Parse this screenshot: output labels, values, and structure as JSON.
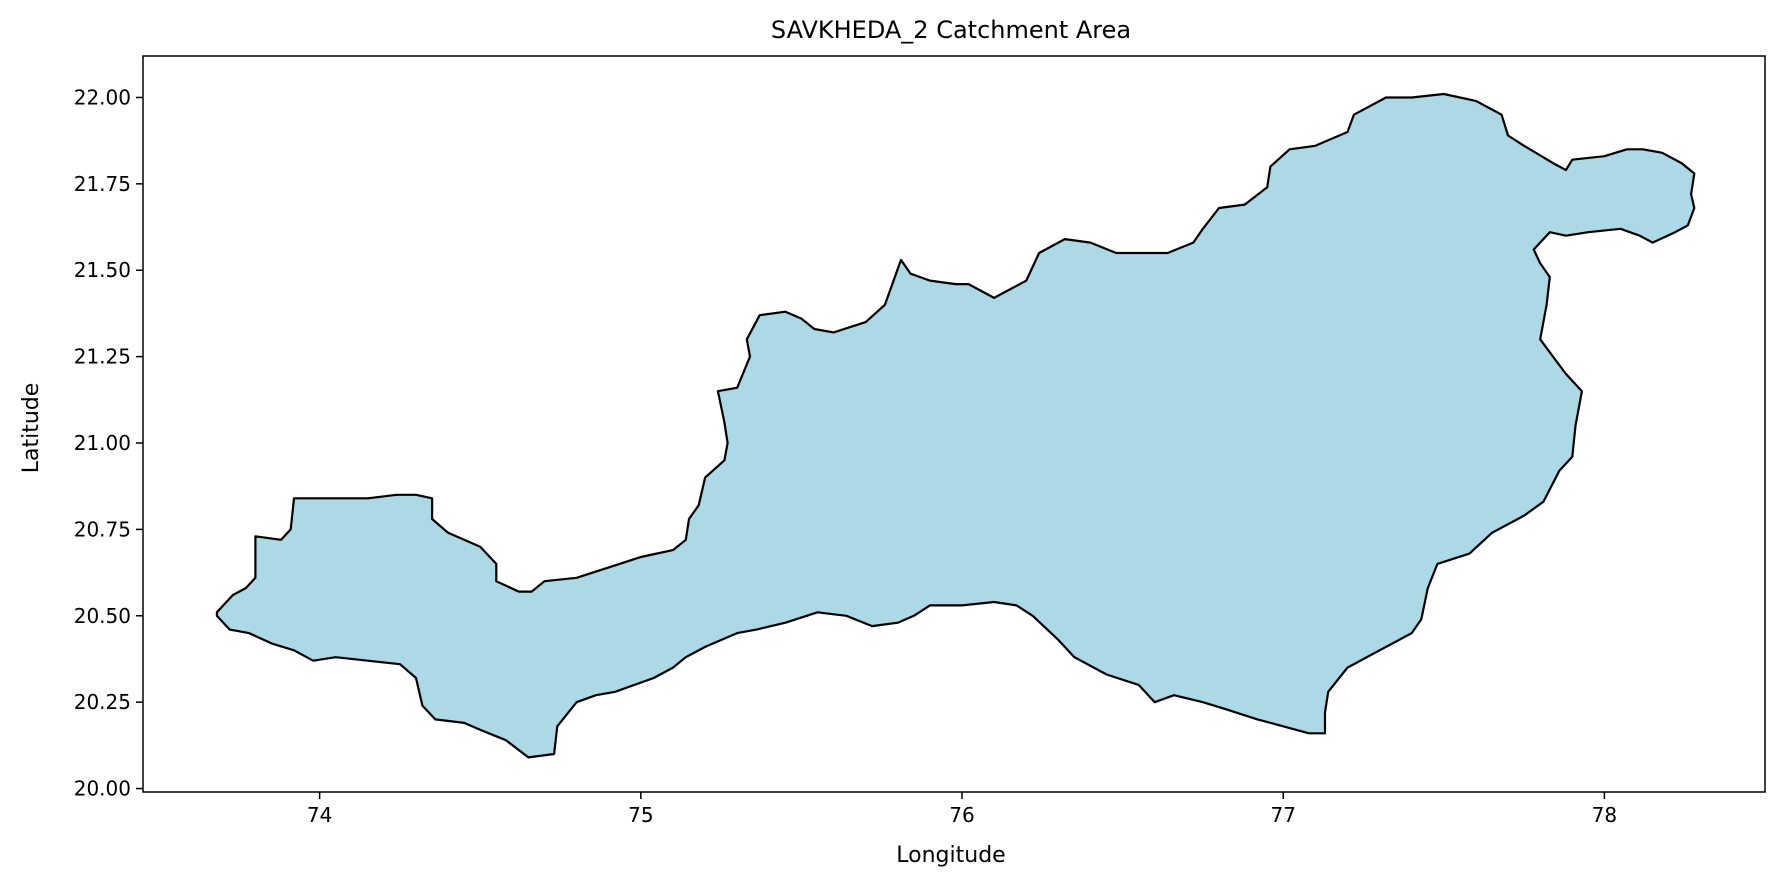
{
  "chart_data": {
    "type": "map",
    "title": "SAVKHEDA_2 Catchment Area",
    "xlabel": "Longitude",
    "ylabel": "Latitude",
    "xlim": [
      73.45,
      78.5
    ],
    "ylim": [
      19.99,
      22.12
    ],
    "x_ticks": [
      74,
      75,
      76,
      77,
      78
    ],
    "x_tick_labels": [
      "74",
      "75",
      "76",
      "77",
      "78"
    ],
    "y_ticks": [
      20.0,
      20.25,
      20.5,
      20.75,
      21.0,
      21.25,
      21.5,
      21.75,
      22.0
    ],
    "y_tick_labels": [
      "20.00",
      "20.25",
      "20.50",
      "20.75",
      "21.00",
      "21.25",
      "21.50",
      "21.75",
      "22.00"
    ],
    "grid": false,
    "legend": "none",
    "fill_color": "#add8e6",
    "edge_color": "#000000",
    "polygon": [
      [
        73.68,
        20.51
      ],
      [
        73.73,
        20.56
      ],
      [
        73.77,
        20.58
      ],
      [
        73.8,
        20.61
      ],
      [
        73.8,
        20.67
      ],
      [
        73.8,
        20.73
      ],
      [
        73.88,
        20.72
      ],
      [
        73.91,
        20.75
      ],
      [
        73.92,
        20.84
      ],
      [
        74.05,
        20.84
      ],
      [
        74.15,
        20.84
      ],
      [
        74.24,
        20.85
      ],
      [
        74.3,
        20.85
      ],
      [
        74.35,
        20.84
      ],
      [
        74.35,
        20.78
      ],
      [
        74.4,
        20.74
      ],
      [
        74.5,
        20.7
      ],
      [
        74.55,
        20.65
      ],
      [
        74.55,
        20.6
      ],
      [
        74.62,
        20.57
      ],
      [
        74.66,
        20.57
      ],
      [
        74.7,
        20.6
      ],
      [
        74.8,
        20.61
      ],
      [
        74.9,
        20.64
      ],
      [
        75.0,
        20.67
      ],
      [
        75.1,
        20.69
      ],
      [
        75.14,
        20.72
      ],
      [
        75.15,
        20.78
      ],
      [
        75.18,
        20.82
      ],
      [
        75.2,
        20.9
      ],
      [
        75.26,
        20.95
      ],
      [
        75.27,
        21.0
      ],
      [
        75.26,
        21.06
      ],
      [
        75.24,
        21.15
      ],
      [
        75.3,
        21.16
      ],
      [
        75.34,
        21.25
      ],
      [
        75.33,
        21.3
      ],
      [
        75.37,
        21.37
      ],
      [
        75.45,
        21.38
      ],
      [
        75.5,
        21.36
      ],
      [
        75.54,
        21.33
      ],
      [
        75.6,
        21.32
      ],
      [
        75.7,
        21.35
      ],
      [
        75.76,
        21.4
      ],
      [
        75.81,
        21.53
      ],
      [
        75.84,
        21.49
      ],
      [
        75.9,
        21.47
      ],
      [
        75.98,
        21.46
      ],
      [
        76.02,
        21.46
      ],
      [
        76.1,
        21.42
      ],
      [
        76.16,
        21.45
      ],
      [
        76.2,
        21.47
      ],
      [
        76.24,
        21.55
      ],
      [
        76.32,
        21.59
      ],
      [
        76.4,
        21.58
      ],
      [
        76.48,
        21.55
      ],
      [
        76.58,
        21.55
      ],
      [
        76.64,
        21.55
      ],
      [
        76.72,
        21.58
      ],
      [
        76.75,
        21.62
      ],
      [
        76.8,
        21.68
      ],
      [
        76.88,
        21.69
      ],
      [
        76.95,
        21.74
      ],
      [
        76.96,
        21.8
      ],
      [
        77.02,
        21.85
      ],
      [
        77.1,
        21.86
      ],
      [
        77.2,
        21.9
      ],
      [
        77.22,
        21.95
      ],
      [
        77.32,
        22.0
      ],
      [
        77.4,
        22.0
      ],
      [
        77.5,
        22.01
      ],
      [
        77.6,
        21.99
      ],
      [
        77.68,
        21.95
      ],
      [
        77.7,
        21.89
      ],
      [
        77.75,
        21.86
      ],
      [
        77.84,
        21.81
      ],
      [
        77.88,
        21.79
      ],
      [
        77.9,
        21.82
      ],
      [
        78.0,
        21.83
      ],
      [
        78.07,
        21.85
      ],
      [
        78.12,
        21.85
      ],
      [
        78.18,
        21.84
      ],
      [
        78.24,
        21.81
      ],
      [
        78.28,
        21.78
      ],
      [
        78.27,
        21.72
      ],
      [
        78.28,
        21.68
      ],
      [
        78.26,
        21.63
      ],
      [
        78.22,
        21.61
      ],
      [
        78.15,
        21.58
      ],
      [
        78.11,
        21.6
      ],
      [
        78.05,
        21.62
      ],
      [
        77.95,
        21.61
      ],
      [
        77.88,
        21.6
      ],
      [
        77.83,
        21.61
      ],
      [
        77.78,
        21.56
      ],
      [
        77.8,
        21.52
      ],
      [
        77.83,
        21.48
      ],
      [
        77.82,
        21.4
      ],
      [
        77.8,
        21.3
      ],
      [
        77.84,
        21.25
      ],
      [
        77.88,
        21.2
      ],
      [
        77.93,
        21.15
      ],
      [
        77.91,
        21.05
      ],
      [
        77.9,
        20.96
      ],
      [
        77.86,
        20.92
      ],
      [
        77.81,
        20.83
      ],
      [
        77.75,
        20.79
      ],
      [
        77.65,
        20.74
      ],
      [
        77.58,
        20.68
      ],
      [
        77.48,
        20.65
      ],
      [
        77.45,
        20.58
      ],
      [
        77.43,
        20.49
      ],
      [
        77.4,
        20.45
      ],
      [
        77.3,
        20.4
      ],
      [
        77.2,
        20.35
      ],
      [
        77.14,
        20.28
      ],
      [
        77.13,
        20.22
      ],
      [
        77.13,
        20.16
      ],
      [
        77.08,
        20.16
      ],
      [
        77.0,
        20.18
      ],
      [
        76.92,
        20.2
      ],
      [
        76.82,
        20.23
      ],
      [
        76.75,
        20.25
      ],
      [
        76.66,
        20.27
      ],
      [
        76.6,
        20.25
      ],
      [
        76.55,
        20.3
      ],
      [
        76.45,
        20.33
      ],
      [
        76.35,
        20.38
      ],
      [
        76.3,
        20.43
      ],
      [
        76.22,
        20.5
      ],
      [
        76.17,
        20.53
      ],
      [
        76.1,
        20.54
      ],
      [
        76.0,
        20.53
      ],
      [
        75.9,
        20.53
      ],
      [
        75.85,
        20.5
      ],
      [
        75.8,
        20.48
      ],
      [
        75.72,
        20.47
      ],
      [
        75.64,
        20.5
      ],
      [
        75.55,
        20.51
      ],
      [
        75.45,
        20.48
      ],
      [
        75.36,
        20.46
      ],
      [
        75.3,
        20.45
      ],
      [
        75.2,
        20.41
      ],
      [
        75.14,
        20.38
      ],
      [
        75.1,
        20.35
      ],
      [
        75.04,
        20.32
      ],
      [
        74.98,
        20.3
      ],
      [
        74.92,
        20.28
      ],
      [
        74.86,
        20.27
      ],
      [
        74.8,
        20.25
      ],
      [
        74.74,
        20.18
      ],
      [
        74.73,
        20.1
      ],
      [
        74.65,
        20.09
      ],
      [
        74.58,
        20.14
      ],
      [
        74.5,
        20.17
      ],
      [
        74.45,
        20.19
      ],
      [
        74.36,
        20.2
      ],
      [
        74.32,
        20.24
      ],
      [
        74.3,
        20.32
      ],
      [
        74.25,
        20.36
      ],
      [
        74.15,
        20.37
      ],
      [
        74.05,
        20.38
      ],
      [
        73.98,
        20.37
      ],
      [
        73.92,
        20.4
      ],
      [
        73.85,
        20.42
      ],
      [
        73.78,
        20.45
      ],
      [
        73.72,
        20.46
      ],
      [
        73.68,
        20.5
      ]
    ]
  }
}
